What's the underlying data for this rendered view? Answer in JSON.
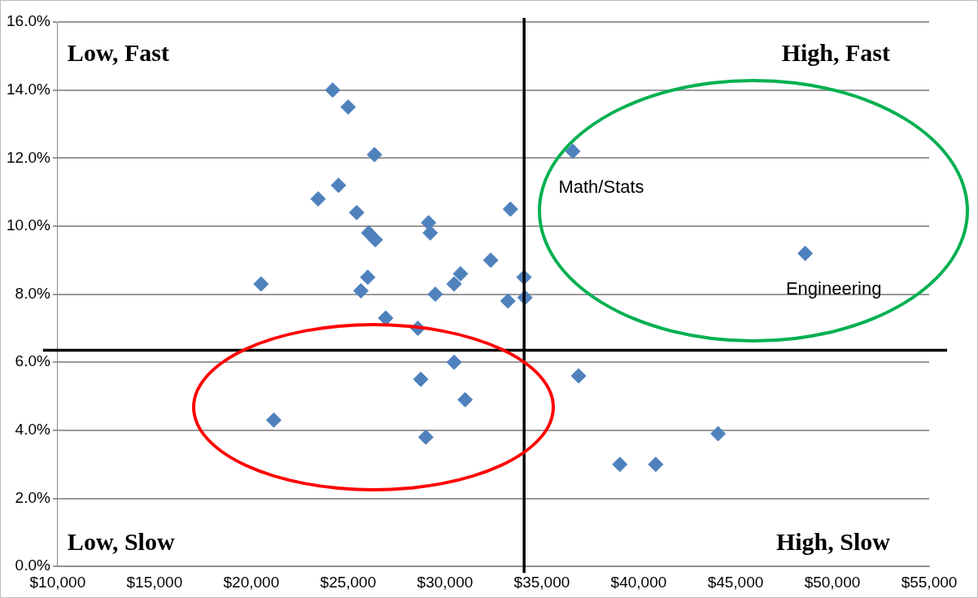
{
  "chart_data": {
    "type": "scatter",
    "x": [
      24200,
      25000,
      26360,
      24500,
      23450,
      25440,
      26060,
      26400,
      29150,
      29240,
      33380,
      20500,
      26010,
      25660,
      26940,
      29500,
      30800,
      30470,
      32360,
      34080,
      33250,
      34130,
      28600,
      28750,
      30470,
      31040,
      21160,
      29010,
      36600,
      48600,
      36900,
      39030,
      40880,
      44100
    ],
    "values": [
      14.0,
      13.5,
      12.1,
      11.2,
      10.8,
      10.4,
      9.8,
      9.6,
      10.1,
      9.8,
      10.5,
      8.3,
      8.5,
      8.1,
      7.3,
      8.0,
      8.6,
      8.3,
      9.0,
      8.5,
      7.8,
      7.9,
      7.0,
      5.5,
      6.0,
      4.9,
      4.3,
      3.8,
      12.2,
      9.2,
      5.6,
      3.0,
      3.0,
      3.9
    ],
    "color": "#4f81bd",
    "marker": "diamond",
    "xlim": [
      10000,
      55000
    ],
    "xticks": [
      {
        "value": 10000,
        "label": "$10,000"
      },
      {
        "value": 15000,
        "label": "$15,000"
      },
      {
        "value": 20000,
        "label": "$20,000"
      },
      {
        "value": 25000,
        "label": "$25,000"
      },
      {
        "value": 30000,
        "label": "$30,000"
      },
      {
        "value": 35000,
        "label": "$35,000"
      },
      {
        "value": 40000,
        "label": "$40,000"
      },
      {
        "value": 45000,
        "label": "$45,000"
      },
      {
        "value": 50000,
        "label": "$50,000"
      },
      {
        "value": 55000,
        "label": "$55,000"
      }
    ],
    "ylim": [
      0,
      16
    ],
    "yticks": [
      {
        "value": 0,
        "label": "0.0%"
      },
      {
        "value": 2,
        "label": "2.0%"
      },
      {
        "value": 4,
        "label": "4.0%"
      },
      {
        "value": 6,
        "label": "6.0%"
      },
      {
        "value": 8,
        "label": "8.0%"
      },
      {
        "value": 10,
        "label": "10.0%"
      },
      {
        "value": 12,
        "label": "12.0%"
      },
      {
        "value": 14,
        "label": "14.0%"
      },
      {
        "value": 16,
        "label": "16.0%"
      }
    ],
    "grid": "y",
    "legend": false,
    "ref_lines": [
      {
        "axis": "x",
        "value": 34085,
        "color": "#000000"
      },
      {
        "axis": "y",
        "value": 6.35,
        "color": "#000000"
      }
    ],
    "annotations": [
      "Low, Fast",
      "High, Fast",
      "Low, Slow",
      "High, Slow",
      {
        "text": "Math/Stats",
        "x": 36600,
        "y": 12.2
      },
      {
        "text": "Engineering",
        "x": 48600,
        "y": 9.2
      }
    ]
  }
}
